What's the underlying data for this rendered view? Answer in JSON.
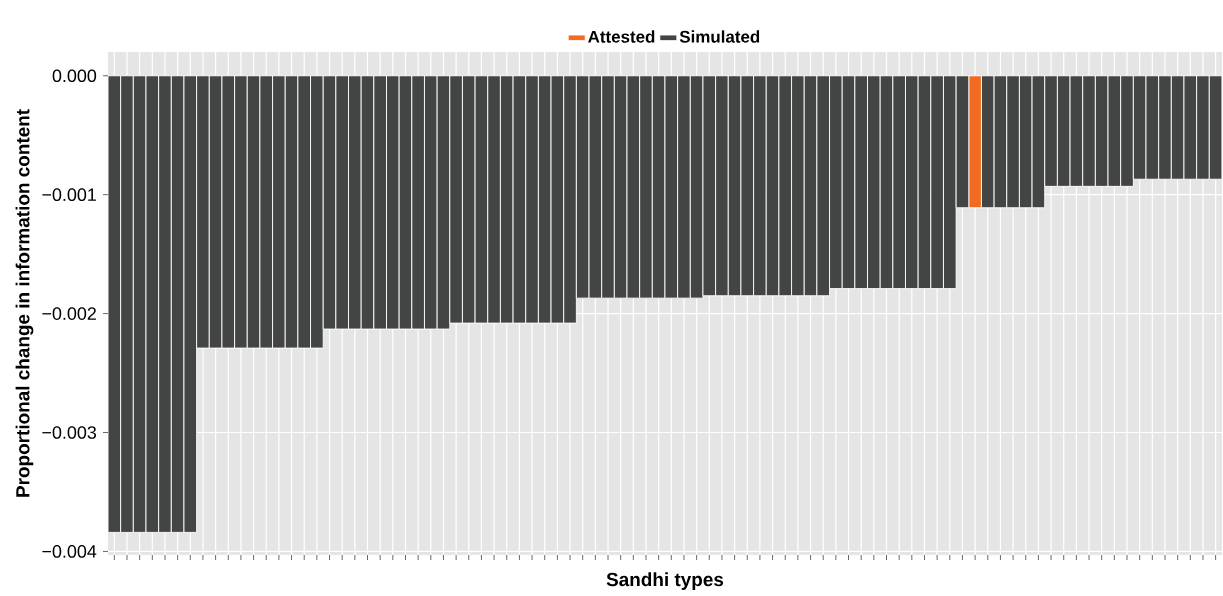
{
  "chart_data": {
    "type": "bar",
    "xlabel": "Sandhi types",
    "ylabel": "Proportional change in information content",
    "categories": [
      null,
      null,
      null,
      null,
      null,
      null,
      null,
      null,
      null,
      null,
      null,
      null,
      null,
      null,
      null,
      null,
      null,
      null,
      null,
      null,
      null,
      null,
      null,
      null,
      null,
      null,
      null,
      null,
      null,
      null,
      null,
      null,
      null,
      null,
      null,
      null,
      null,
      null,
      null,
      null,
      null,
      null,
      null,
      null,
      null,
      null,
      null,
      null,
      null,
      null,
      null,
      null,
      null,
      null,
      null,
      null,
      null,
      null,
      null,
      null,
      null,
      null,
      null,
      null,
      null,
      null,
      null,
      null,
      null,
      null,
      null,
      null,
      null,
      null,
      null,
      null,
      null,
      null,
      null,
      null,
      null,
      null,
      null,
      null,
      null,
      null,
      null,
      null
    ],
    "series": [
      {
        "name": "Attested",
        "color": "#f26b21",
        "values": [
          null,
          null,
          null,
          null,
          null,
          null,
          null,
          null,
          null,
          null,
          null,
          null,
          null,
          null,
          null,
          null,
          null,
          null,
          null,
          null,
          null,
          null,
          null,
          null,
          null,
          null,
          null,
          null,
          null,
          null,
          null,
          null,
          null,
          null,
          null,
          null,
          null,
          null,
          null,
          null,
          null,
          null,
          null,
          null,
          null,
          null,
          null,
          null,
          null,
          null,
          null,
          null,
          null,
          null,
          null,
          null,
          null,
          null,
          null,
          null,
          null,
          null,
          null,
          null,
          null,
          null,
          null,
          null,
          -0.00111,
          null,
          null,
          null,
          null,
          null,
          null,
          null,
          null,
          null,
          null,
          null,
          null,
          null,
          null,
          null,
          null,
          null,
          null,
          null
        ]
      },
      {
        "name": "Simulated",
        "color": "#434545",
        "values": [
          -0.00384,
          -0.00384,
          -0.00384,
          -0.00384,
          -0.00384,
          -0.00384,
          -0.00384,
          -0.00229,
          -0.00229,
          -0.00229,
          -0.00229,
          -0.00229,
          -0.00229,
          -0.00229,
          -0.00229,
          -0.00229,
          -0.00229,
          -0.00213,
          -0.00213,
          -0.00213,
          -0.00213,
          -0.00213,
          -0.00213,
          -0.00213,
          -0.00213,
          -0.00213,
          -0.00213,
          -0.00208,
          -0.00208,
          -0.00208,
          -0.00208,
          -0.00208,
          -0.00208,
          -0.00208,
          -0.00208,
          -0.00208,
          -0.00208,
          -0.00187,
          -0.00187,
          -0.00187,
          -0.00187,
          -0.00187,
          -0.00187,
          -0.00187,
          -0.00187,
          -0.00187,
          -0.00187,
          -0.00185,
          -0.00185,
          -0.00185,
          -0.00185,
          -0.00185,
          -0.00185,
          -0.00185,
          -0.00185,
          -0.00185,
          -0.00185,
          -0.00179,
          -0.00179,
          -0.00179,
          -0.00179,
          -0.00179,
          -0.00179,
          -0.00179,
          -0.00179,
          -0.00179,
          -0.00179,
          -0.00111,
          null,
          -0.00111,
          -0.00111,
          -0.00111,
          -0.00111,
          -0.00111,
          -0.00093,
          -0.00093,
          -0.00093,
          -0.00093,
          -0.00093,
          -0.00093,
          -0.00093,
          -0.00087,
          -0.00087,
          -0.00087,
          -0.00087,
          -0.00087,
          -0.00087,
          -0.00087
        ]
      }
    ],
    "ylim": [
      -0.00403,
      0.0002
    ],
    "yticks": [
      {
        "value": 0,
        "label": "0.000"
      },
      {
        "value": -0.001,
        "label": "−0.001"
      },
      {
        "value": -0.002,
        "label": "−0.002"
      },
      {
        "value": -0.003,
        "label": "−0.003"
      },
      {
        "value": -0.004,
        "label": "−0.004"
      }
    ],
    "grid": true,
    "legend": "top"
  }
}
